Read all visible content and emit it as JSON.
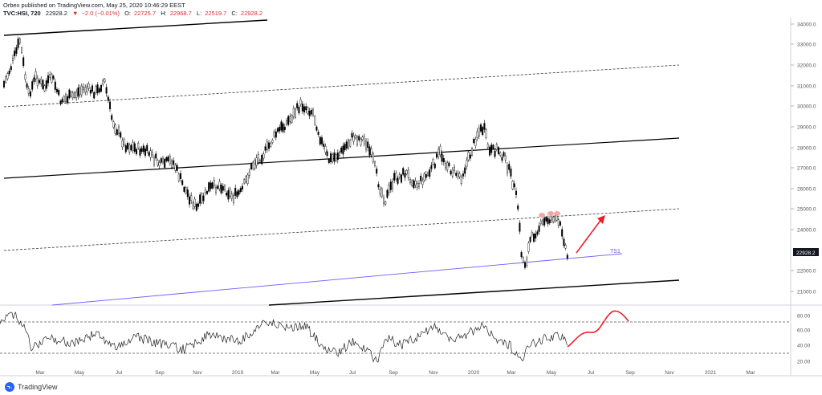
{
  "header": {
    "publisher": "Orbex published on TradingView.com, May 25, 2020 10:46:29 EEST",
    "symbol": "TVC:HSI, 720",
    "last": "22928.2",
    "change_icon": "down-triangle-icon",
    "change": "−2.0 (−0.01%)",
    "open_label": "O:",
    "open": "22725.7",
    "high_label": "H:",
    "high": "22968.7",
    "low_label": "L:",
    "low": "22519.7",
    "close_label": "C:",
    "close": "22928.2"
  },
  "price_axis": {
    "ticks": [
      "34000.0",
      "33000.0",
      "32000.0",
      "31000.0",
      "30000.0",
      "29000.0",
      "28000.0",
      "27000.0",
      "26000.0",
      "25000.0",
      "24000.0",
      "22000.0",
      "21000.0"
    ],
    "current_price": "22928.2"
  },
  "rsi_axis": {
    "ticks": [
      "80.00",
      "60.00",
      "40.00",
      "20.00"
    ]
  },
  "time_axis": {
    "ticks": [
      "Mar",
      "May",
      "Jul",
      "Sep",
      "Nov",
      "2019",
      "Mar",
      "May",
      "Jul",
      "Sep",
      "Nov",
      "2020",
      "Mar",
      "May",
      "Jul",
      "Sep",
      "Nov",
      "2021",
      "Mar"
    ]
  },
  "annotation": {
    "line_label": "TS1"
  },
  "colors": {
    "candle": "#000000",
    "blue_line": "#6a5cff",
    "red_arrow": "#e8202a",
    "red_highlight": "#f4a7a7",
    "change": "#d43030"
  },
  "footer": {
    "brand_icon": "tradingview-logo-icon",
    "brand": "TradingView"
  }
}
